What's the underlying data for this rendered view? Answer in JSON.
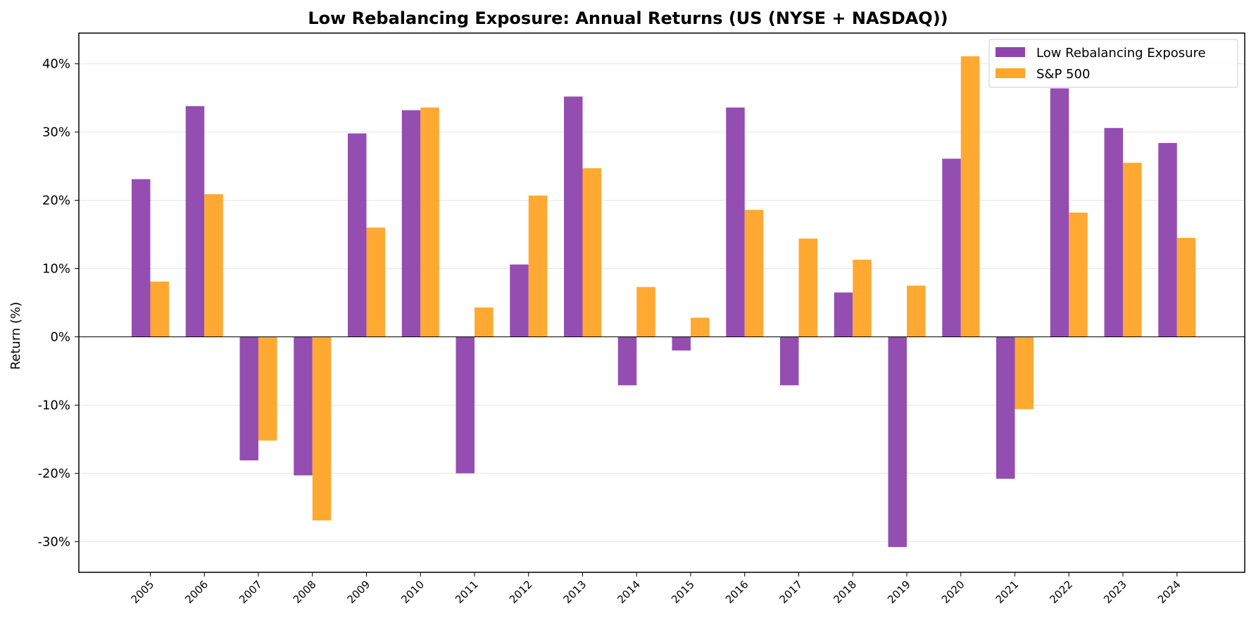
{
  "chart_data": {
    "type": "bar",
    "title": "Low Rebalancing Exposure: Annual Returns (US (NYSE + NASDAQ))",
    "xlabel": "",
    "ylabel": "Return (%)",
    "ylim": [
      -34.5,
      44.5
    ],
    "yticks": [
      -30,
      -20,
      -10,
      0,
      10,
      20,
      30,
      40
    ],
    "ytick_labels": [
      "-30%",
      "-20%",
      "-10%",
      "0%",
      "10%",
      "20%",
      "30%",
      "40%"
    ],
    "grid": "horizontal",
    "legend_position": "top-right",
    "categories": [
      "2005",
      "2006",
      "2007",
      "2008",
      "2009",
      "2010",
      "2011",
      "2012",
      "2013",
      "2014",
      "2015",
      "2016",
      "2017",
      "2018",
      "2019",
      "2020",
      "2021",
      "2022",
      "2023",
      "2024"
    ],
    "series": [
      {
        "name": "Low Rebalancing Exposure",
        "color": "#8e44ad",
        "values": [
          23.1,
          33.8,
          -18.1,
          -20.3,
          29.8,
          33.2,
          -20.0,
          10.6,
          35.2,
          -7.1,
          -2.0,
          33.6,
          -7.1,
          6.5,
          -30.8,
          26.1,
          -20.8,
          36.4,
          30.6,
          28.4
        ]
      },
      {
        "name": "S&P 500",
        "color": "#ffa62b",
        "values": [
          8.1,
          20.9,
          -15.2,
          -26.9,
          16.0,
          33.6,
          4.3,
          20.7,
          24.7,
          7.3,
          2.8,
          18.6,
          14.4,
          11.3,
          7.5,
          41.1,
          -10.6,
          18.2,
          25.5,
          14.5
        ]
      }
    ]
  }
}
